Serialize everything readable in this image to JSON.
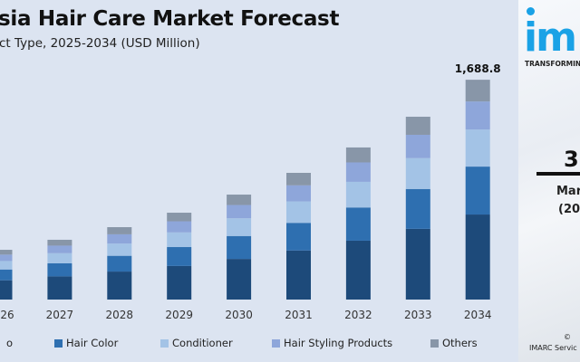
{
  "chart_data": {
    "type": "bar",
    "stacked": true,
    "title": "sia Hair Care Market Forecast",
    "subtitle": "ct Type, 2025-2034 (USD Million)",
    "categories": [
      "26",
      "2027",
      "2028",
      "2029",
      "2030",
      "2031",
      "2032",
      "2033",
      "2034"
    ],
    "series": [
      {
        "name": "o",
        "color": "#1d4a7a",
        "values": [
          148,
          178,
          215,
          258,
          312,
          377,
          452,
          543,
          653
        ]
      },
      {
        "name": "Hair Color",
        "color": "#2e6fb0",
        "values": [
          83,
          100,
          121,
          145,
          176,
          212,
          255,
          306,
          368
        ]
      },
      {
        "name": "Conditioner",
        "color": "#a3c3e6",
        "values": [
          65,
          78,
          94,
          113,
          136,
          164,
          197,
          237,
          285
        ]
      },
      {
        "name": "Hair Styling Products",
        "color": "#8ea6da",
        "values": [
          49,
          58,
          71,
          85,
          102,
          124,
          149,
          179,
          215
        ]
      },
      {
        "name": "Others",
        "color": "#8896a8",
        "values": [
          37,
          45,
          55,
          66,
          80,
          96,
          115,
          139,
          167
        ]
      }
    ],
    "totals_label": {
      "category": "2034",
      "text": "1,688.8"
    },
    "ylim": [
      0,
      1750
    ],
    "grid": false,
    "legend_position": "bottom"
  },
  "panel": {
    "logo": "im",
    "tagline": "TRANSFORMIN",
    "big_number": "3.",
    "label_line1": "Mar",
    "label_line2": "(20",
    "copyright": "©",
    "source": "IMARC Servic"
  }
}
